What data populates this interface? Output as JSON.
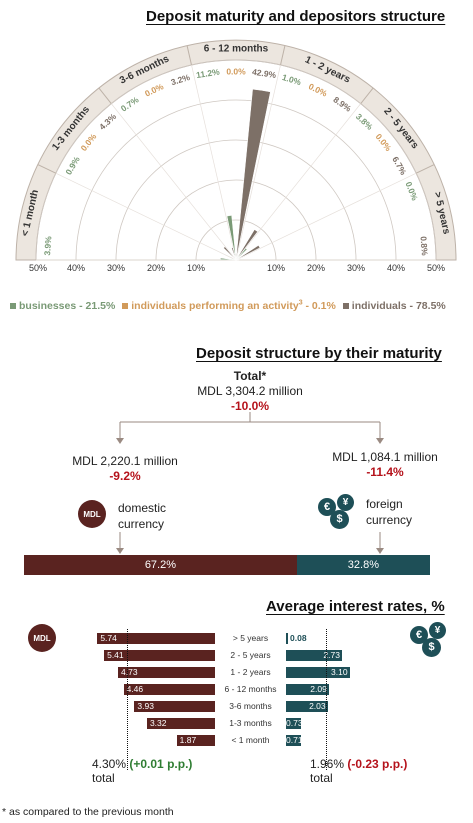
{
  "chart_data": [
    {
      "type": "radial-bar",
      "title": "Deposit maturity and depositors structure",
      "categories": [
        "< 1 month",
        "1-3 months",
        "3-6 months",
        "6 - 12 months",
        "1 - 2 years",
        "2 - 5 years",
        "> 5 years"
      ],
      "series": [
        {
          "name": "businesses - 21.5%",
          "color": "#7a9a76",
          "values": [
            3.9,
            0.9,
            0.7,
            11.2,
            1.0,
            3.8,
            0.0
          ]
        },
        {
          "name": "individuals performing an activity",
          "color": "#d19a5a",
          "values": [
            0.0,
            0.0,
            0.0,
            0.0,
            0.0,
            0.0,
            0.0
          ]
        },
        {
          "name": "individuals - 78.5%",
          "color": "#7d7067",
          "values": [
            0.0,
            4.3,
            3.2,
            42.9,
            8.9,
            6.7,
            0.8
          ]
        }
      ],
      "label_texts": [
        [
          "3.9%",
          "",
          ""
        ],
        [
          "0.9%",
          "0.0%",
          "4.3%"
        ],
        [
          "0.7%",
          "0.0%",
          "3.2%"
        ],
        [
          "11.2%",
          "0.0%",
          "42.9%"
        ],
        [
          "1.0%",
          "0.0%",
          "8.9%"
        ],
        [
          "3.8%",
          "0.0%",
          "6.7%"
        ],
        [
          "0.0%",
          "",
          "0.8%"
        ]
      ],
      "axis_ticks": [
        "50%",
        "40%",
        "30%",
        "20%",
        "10%",
        "10%",
        "20%",
        "30%",
        "40%",
        "50%"
      ],
      "legend_suffix": "- 0.1%",
      "legend_sup": "3",
      "rmax": 50,
      "legend_position": "bottom"
    },
    {
      "type": "bar",
      "title": "Deposit structure by their maturity",
      "total_label": "Total*",
      "total_value": "MDL 3,304.2 million",
      "total_change": "-10.0%",
      "domestic": {
        "value": "MDL 2,220.1 million",
        "change": "-9.2%",
        "label1": "domestic",
        "label2": "currency",
        "icon": "MDL",
        "share": 67.2,
        "share_label": "67.2%"
      },
      "foreign": {
        "value": "MDL 1,084.1 million",
        "change": "-11.4%",
        "label1": "foreign",
        "label2": "currency",
        "icon": "€ $ ¥",
        "share": 32.8,
        "share_label": "32.8%"
      }
    },
    {
      "type": "bar",
      "title": "Average interest rates, %",
      "categories": [
        "> 5 years",
        "2 - 5 years",
        "1 - 2 years",
        "6 - 12 months",
        "3-6 months",
        "1-3 months",
        "< 1 month"
      ],
      "series": [
        {
          "name": "MDL",
          "color": "#5a2320",
          "values": [
            5.74,
            5.41,
            4.73,
            4.46,
            3.93,
            3.32,
            1.87
          ],
          "labels": [
            "5.74",
            "5.41",
            "4.73",
            "4.46",
            "3.93",
            "3.32",
            "1.87"
          ]
        },
        {
          "name": "foreign currency",
          "color": "#1e4f57",
          "values": [
            0.08,
            2.73,
            3.1,
            2.09,
            2.03,
            0.73,
            0.71
          ],
          "labels": [
            "0.08",
            "2.73",
            "3.10",
            "2.09",
            "2.03",
            "0.73",
            "0.71"
          ]
        }
      ],
      "mdl_total": "4.30%",
      "mdl_total_change": "(+0.01 p.p.)",
      "mdl_total_label": "total",
      "mdl_avg": 4.3,
      "fx_total": "1.96%",
      "fx_total_change": "(-0.23 p.p.)",
      "fx_total_label": "total",
      "fx_avg": 1.96
    }
  ],
  "footnote": "* as compared to the previous month"
}
